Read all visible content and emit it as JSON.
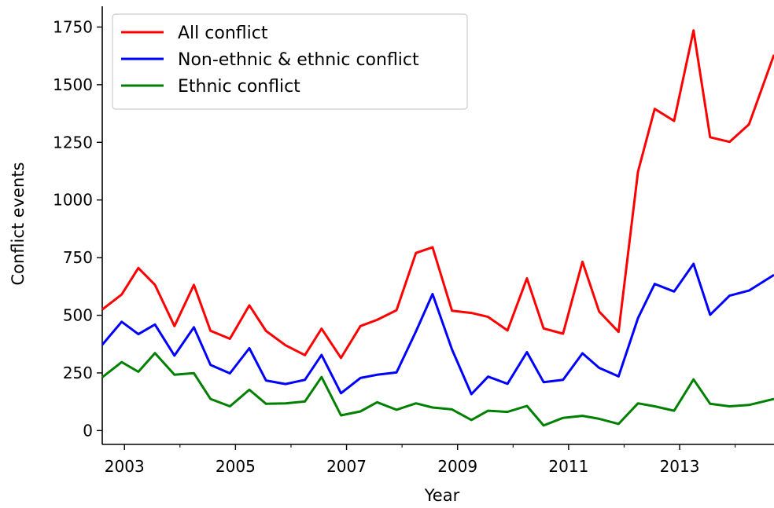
{
  "chart_data": {
    "type": "line",
    "title": "",
    "xlabel": "Year",
    "ylabel": "Conflict events",
    "xlim": [
      2002.6,
      2014.7
    ],
    "ylim": [
      -60,
      1840
    ],
    "x_major_ticks": [
      2003,
      2005,
      2007,
      2009,
      2011,
      2013
    ],
    "x_minor_ticks": [
      2004,
      2006,
      2008,
      2010,
      2012,
      2014
    ],
    "y_ticks": [
      0,
      250,
      500,
      750,
      1000,
      1250,
      1500,
      1750
    ],
    "grid": false,
    "legend_position": "upper-left",
    "x": [
      2002.6,
      2002.95,
      2003.25,
      2003.55,
      2003.9,
      2004.25,
      2004.55,
      2004.9,
      2005.25,
      2005.55,
      2005.9,
      2006.25,
      2006.55,
      2006.9,
      2007.25,
      2007.55,
      2007.9,
      2008.25,
      2008.55,
      2008.9,
      2009.25,
      2009.55,
      2009.9,
      2010.25,
      2010.55,
      2010.9,
      2011.25,
      2011.55,
      2011.9,
      2012.25,
      2012.55,
      2012.9,
      2013.25,
      2013.55,
      2013.9,
      2014.25,
      2014.7
    ],
    "series": [
      {
        "name": "All conflict",
        "color": "#ff0000",
        "values": [
          525,
          590,
          705,
          632,
          453,
          632,
          433,
          398,
          543,
          432,
          370,
          327,
          442,
          315,
          453,
          480,
          522,
          770,
          795,
          520,
          510,
          493,
          434,
          660,
          443,
          420,
          732,
          516,
          428,
          1123,
          1395,
          1343,
          1735,
          1272,
          1252,
          1328,
          1630
        ]
      },
      {
        "name": "Non-ethnic & ethnic conflict",
        "color": "#0000ff",
        "values": [
          372,
          472,
          418,
          460,
          325,
          448,
          285,
          248,
          357,
          217,
          202,
          220,
          328,
          162,
          228,
          242,
          252,
          430,
          592,
          352,
          158,
          234,
          203,
          340,
          210,
          220,
          335,
          272,
          235,
          488,
          636,
          603,
          723,
          502,
          585,
          607,
          675
        ]
      },
      {
        "name": "Ethnic conflict",
        "color": "#008000",
        "values": [
          231,
          297,
          255,
          336,
          242,
          249,
          137,
          105,
          177,
          116,
          118,
          126,
          232,
          66,
          83,
          123,
          90,
          118,
          100,
          92,
          46,
          86,
          81,
          107,
          22,
          55,
          64,
          51,
          29,
          118,
          105,
          86,
          222,
          116,
          105,
          111,
          137
        ]
      }
    ]
  }
}
